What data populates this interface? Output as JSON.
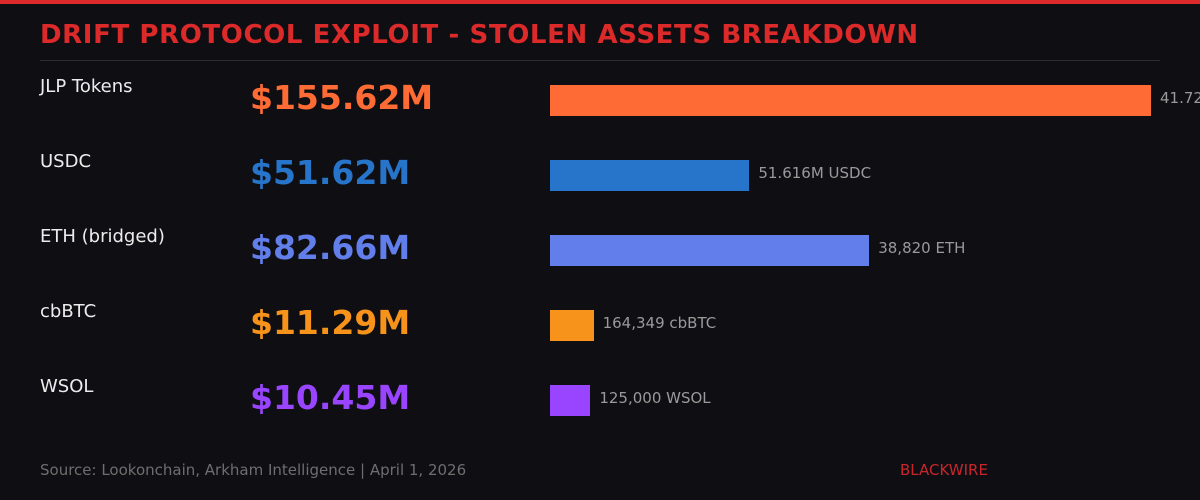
{
  "colors": {
    "accent": "#dc2a2a",
    "background": "#0f0f13"
  },
  "chart_data": {
    "type": "bar",
    "orientation": "horizontal",
    "title": "DRIFT PROTOCOL EXPLOIT - STOLEN ASSETS BREAKDOWN",
    "unit": "USD millions",
    "xlim": [
      0,
      155.62
    ],
    "grid": false,
    "categories": [
      "JLP Tokens",
      "USDC",
      "ETH (bridged)",
      "cbBTC",
      "WSOL"
    ],
    "values": [
      155.62,
      51.62,
      82.66,
      11.29,
      10.45
    ],
    "value_labels": [
      "$155.62M",
      "$51.62M",
      "$82.66M",
      "$11.29M",
      "$10.45M"
    ],
    "quantity_labels": [
      "41.72",
      "51.616M USDC",
      "38,820 ETH",
      "164,349 cbBTC",
      "125,000 WSOL"
    ],
    "colors": [
      "#ff6b35",
      "#2775ca",
      "#627eea",
      "#f7931a",
      "#9945ff"
    ]
  },
  "footer": {
    "source": "Source: Lookonchain, Arkham Intelligence | April 1, 2026",
    "brand": "BLACKWIRE"
  }
}
